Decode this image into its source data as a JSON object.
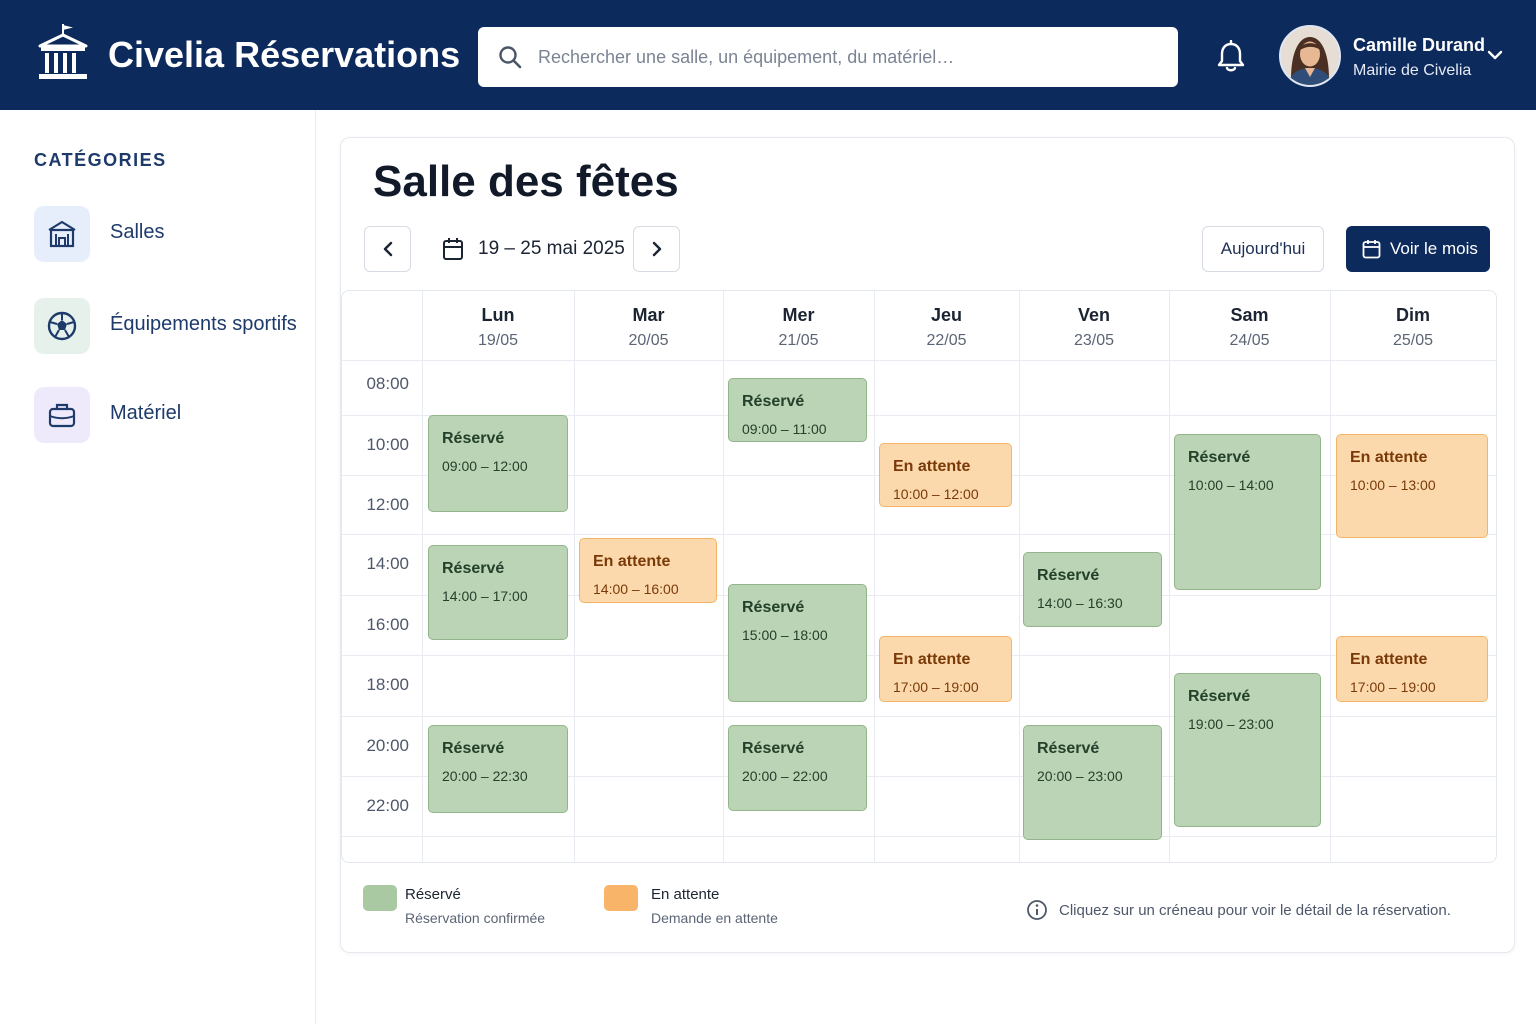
{
  "header": {
    "app_title": "Civelia Réservations",
    "search_placeholder": "Rechercher une salle, un équipement, du matériel…",
    "user_name": "Camille Durand",
    "user_org": "Mairie de Civelia"
  },
  "sidebar": {
    "title": "CATÉGORIES",
    "items": [
      {
        "label": "Salles",
        "icon": "building-icon"
      },
      {
        "label": "Équipements sportifs",
        "icon": "soccer-ball-icon"
      },
      {
        "label": "Matériel",
        "icon": "briefcase-icon"
      }
    ]
  },
  "main": {
    "title": "Salle des fêtes",
    "date_range": "19 – 25 mai 2025",
    "today_label": "Aujourd'hui",
    "month_label": "Voir le mois"
  },
  "calendar": {
    "days": [
      {
        "name": "Lun",
        "date": "19/05"
      },
      {
        "name": "Mar",
        "date": "20/05"
      },
      {
        "name": "Mer",
        "date": "21/05"
      },
      {
        "name": "Jeu",
        "date": "22/05"
      },
      {
        "name": "Ven",
        "date": "23/05"
      },
      {
        "name": "Sam",
        "date": "24/05"
      },
      {
        "name": "Dim",
        "date": "25/05"
      }
    ],
    "times": [
      "08:00",
      "10:00",
      "12:00",
      "14:00",
      "16:00",
      "18:00",
      "20:00",
      "22:00"
    ],
    "bookings": [
      {
        "day": 0,
        "status": "Réservé",
        "time": "09:00 – 12:00"
      },
      {
        "day": 0,
        "status": "Réservé",
        "time": "14:00 – 17:00"
      },
      {
        "day": 0,
        "status": "Réservé",
        "time": "20:00 – 22:30"
      },
      {
        "day": 1,
        "status": "En attente",
        "time": "14:00 – 16:00"
      },
      {
        "day": 2,
        "status": "Réservé",
        "time": "09:00 – 11:00"
      },
      {
        "day": 2,
        "status": "Réservé",
        "time": "15:00 – 18:00"
      },
      {
        "day": 2,
        "status": "Réservé",
        "time": "20:00 – 22:00"
      },
      {
        "day": 3,
        "status": "En attente",
        "time": "10:00 – 12:00"
      },
      {
        "day": 3,
        "status": "En attente",
        "time": "17:00 – 19:00"
      },
      {
        "day": 4,
        "status": "Réservé",
        "time": "14:00 – 16:30"
      },
      {
        "day": 4,
        "status": "Réservé",
        "time": "20:00 – 23:00"
      },
      {
        "day": 5,
        "status": "Réservé",
        "time": "10:00 – 14:00"
      },
      {
        "day": 5,
        "status": "Réservé",
        "time": "19:00 – 23:00"
      },
      {
        "day": 6,
        "status": "En attente",
        "time": "10:00 – 13:00"
      },
      {
        "day": 6,
        "status": "En attente",
        "time": "17:00 – 19:00"
      }
    ]
  },
  "legend": {
    "reserved_title": "Réservé",
    "reserved_desc": "Réservation confirmée",
    "pending_title": "En attente",
    "pending_desc": "Demande en attente",
    "info": "Cliquez sur un créneau pour voir le détail de la réservation."
  },
  "colors": {
    "header_bg": "#0d2a5c",
    "reserved": "#bcd4b6",
    "pending": "#fcd9ad",
    "primary_button": "#0d2a5c"
  }
}
